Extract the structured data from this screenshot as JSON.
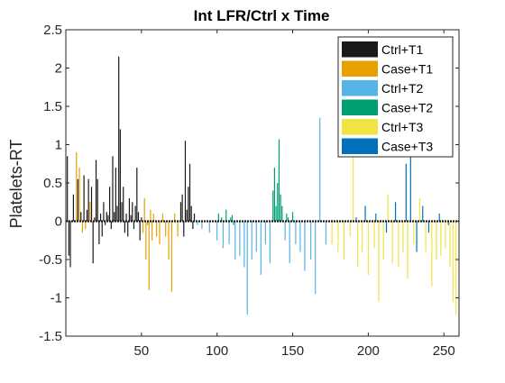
{
  "chart_data": {
    "type": "bar",
    "title": "Int LFR/Ctrl x Time",
    "xlabel": "",
    "ylabel": "Platelets-RT",
    "xlim": [
      0,
      260
    ],
    "ylim": [
      -1.5,
      2.5
    ],
    "xticks": [
      50,
      100,
      150,
      200,
      250
    ],
    "yticks": [
      -1.5,
      -1,
      -0.5,
      0,
      0.5,
      1,
      1.5,
      2,
      2.5
    ],
    "xtick_labels": [
      "50",
      "100",
      "150",
      "200",
      "250"
    ],
    "ytick_labels": [
      "-1.5",
      "-1",
      "-0.5",
      "0",
      "0.5",
      "1",
      "1.5",
      "2",
      "2.5"
    ],
    "grid": false,
    "legend_position": "top-right",
    "series": [
      {
        "name": "Ctrl+T1",
        "color": "#1a1a1a",
        "x": [
          1,
          2,
          3,
          5,
          8,
          10,
          12,
          14,
          15,
          17,
          18,
          19,
          20,
          21,
          22,
          23,
          24,
          25,
          26,
          27,
          28,
          29,
          30,
          31,
          32,
          33,
          34,
          35,
          36,
          37,
          38,
          39,
          40,
          41,
          42,
          43,
          44,
          45,
          46,
          47,
          48,
          49,
          50,
          76,
          77,
          78,
          79,
          80,
          81,
          82,
          83,
          84,
          85
        ],
        "values": [
          0.85,
          -0.45,
          -0.6,
          0.35,
          0.55,
          0.12,
          0.6,
          0.15,
          0.55,
          0.45,
          -0.55,
          0.05,
          0.8,
          0.55,
          -0.3,
          0.1,
          -0.2,
          0.25,
          -0.05,
          0.12,
          0.08,
          0.45,
          -0.1,
          0.85,
          0.12,
          0.7,
          0.2,
          2.15,
          1.2,
          0.25,
          0.45,
          -0.15,
          0.1,
          -0.2,
          0.3,
          0.08,
          0.25,
          -0.1,
          0.2,
          0.7,
          0.12,
          -0.25,
          0.05,
          0.25,
          0.35,
          -0.2,
          1.05,
          0.15,
          0.45,
          0.75,
          0.2,
          -0.1,
          0.1
        ]
      },
      {
        "name": "Case+T1",
        "color": "#E6A000",
        "x": [
          7,
          9,
          11,
          13,
          16,
          51,
          52,
          53,
          54,
          55,
          56,
          57,
          58,
          60,
          62,
          64,
          66,
          68,
          70,
          72,
          74
        ],
        "values": [
          0.9,
          0.7,
          -0.15,
          -0.1,
          0.25,
          -0.15,
          0.3,
          -0.5,
          -0.05,
          -0.9,
          0.15,
          -0.25,
          0.1,
          -0.2,
          -0.3,
          0.1,
          -0.2,
          -0.5,
          -0.92,
          0.1,
          -0.2
        ]
      },
      {
        "name": "Ctrl+T2",
        "color": "#56B4E9",
        "x": [
          87,
          90,
          95,
          100,
          104,
          108,
          112,
          115,
          118,
          120,
          123,
          126,
          129,
          132,
          135,
          145,
          148,
          152,
          155,
          158,
          162,
          165,
          168,
          172
        ],
        "values": [
          -0.05,
          -0.1,
          -0.15,
          -0.25,
          -0.35,
          -0.3,
          -0.5,
          -0.45,
          -0.6,
          -1.22,
          -0.5,
          -0.4,
          -0.7,
          -0.3,
          -0.55,
          -0.25,
          -0.55,
          -0.3,
          -0.4,
          -0.65,
          -0.5,
          -0.95,
          1.35,
          -0.3
        ]
      },
      {
        "name": "Case+T2",
        "color": "#009E73",
        "x": [
          101,
          103,
          106,
          109,
          110,
          111,
          137,
          138,
          139,
          140,
          141,
          142,
          143,
          146,
          147,
          150
        ],
        "values": [
          0.1,
          0.05,
          0.15,
          0.05,
          0.08,
          -0.05,
          0.4,
          0.7,
          0.2,
          0.5,
          1.07,
          0.35,
          0.2,
          0.1,
          0.05,
          0.12
        ]
      },
      {
        "name": "Ctrl+T3",
        "color": "#F0E442",
        "x": [
          176,
          180,
          184,
          188,
          190,
          193,
          196,
          200,
          204,
          207,
          210,
          213,
          216,
          220,
          223,
          226,
          230,
          234,
          238,
          242,
          245,
          248,
          251,
          254,
          256,
          258
        ],
        "values": [
          -0.3,
          -0.4,
          -0.5,
          -0.2,
          1.0,
          -0.6,
          -0.4,
          -0.7,
          -0.35,
          -1.05,
          -0.5,
          0.35,
          -0.55,
          -0.6,
          -0.4,
          -0.75,
          -0.3,
          0.3,
          -0.4,
          -0.85,
          -0.5,
          -0.45,
          -0.35,
          -0.6,
          -1.05,
          -1.22
        ]
      },
      {
        "name": "Case+T3",
        "color": "#0072BD",
        "x": [
          192,
          198,
          205,
          212,
          218,
          225,
          228,
          232,
          236,
          240,
          247,
          253
        ],
        "values": [
          0.05,
          0.2,
          0.1,
          -0.15,
          0.25,
          0.75,
          0.85,
          -0.4,
          0.2,
          -0.15,
          0.1,
          -0.05
        ]
      }
    ]
  }
}
